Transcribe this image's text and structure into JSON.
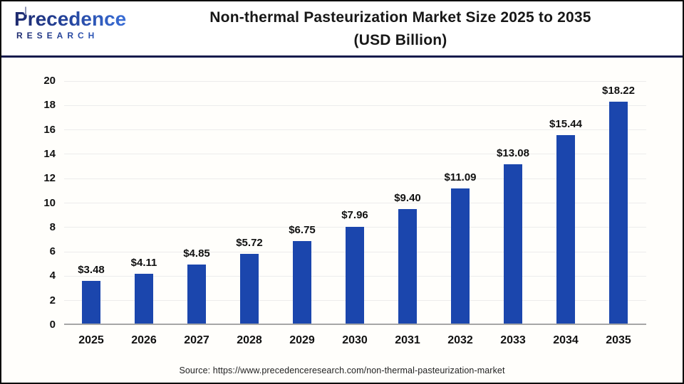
{
  "header": {
    "logo": {
      "name": "Precedence",
      "subtext": "RESEARCH"
    },
    "title_line1": "Non-thermal Pasteurization Market Size 2025 to 2035",
    "title_line2": "(USD Billion)"
  },
  "chart_data": {
    "type": "bar",
    "title": "Non-thermal Pasteurization Market Size 2025 to 2035 (USD Billion)",
    "categories": [
      "2025",
      "2026",
      "2027",
      "2028",
      "2029",
      "2030",
      "2031",
      "2032",
      "2033",
      "2034",
      "2035"
    ],
    "values": [
      3.48,
      4.11,
      4.85,
      5.72,
      6.75,
      7.96,
      9.4,
      11.09,
      13.08,
      15.44,
      18.22
    ],
    "bar_labels": [
      "$3.48",
      "$4.11",
      "$4.85",
      "$5.72",
      "$6.75",
      "$7.96",
      "$9.40",
      "$11.09",
      "$13.08",
      "$15.44",
      "$18.22"
    ],
    "xlabel": "",
    "ylabel": "",
    "ylim": [
      0,
      20
    ],
    "ytick_step": 2,
    "yticks": [
      0,
      2,
      4,
      6,
      8,
      10,
      12,
      14,
      16,
      18,
      20
    ],
    "grid": true,
    "legend": null,
    "bar_color": "#1b46ad"
  },
  "footer": {
    "source": "Source: https://www.precedenceresearch.com/non-thermal-pasteurization-market"
  },
  "colors": {
    "bar": "#1b46ad",
    "header_rule": "#141b4d",
    "grid": "#ececec",
    "axis_line": "#a6a6a6",
    "text": "#111111",
    "logo_gradient_start": "#1e2a6d",
    "logo_gradient_end": "#3a6fd8"
  }
}
